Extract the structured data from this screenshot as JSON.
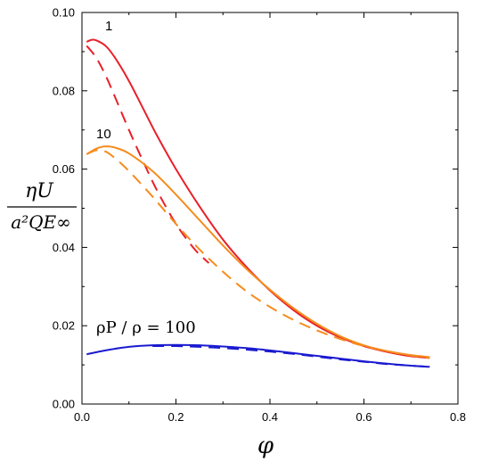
{
  "chart_data": {
    "type": "line",
    "xlabel": "φ",
    "ylabel": {
      "numerator": "ηU",
      "denominator": "a²QE∞"
    },
    "xlim": [
      0,
      0.8
    ],
    "ylim": [
      0,
      0.1
    ],
    "xticks": [
      "0.0",
      "0.2",
      "0.4",
      "0.6",
      "0.8"
    ],
    "yticks": [
      "0.00",
      "0.02",
      "0.04",
      "0.06",
      "0.08",
      "0.10"
    ],
    "grid": false,
    "legend": "none",
    "annotations": {
      "a1": "1",
      "a10": "10",
      "a100": "ρP / ρ = 100"
    },
    "series": [
      {
        "color": "#e8202a",
        "dash": false,
        "x": [
          0.01,
          0.02,
          0.03,
          0.05,
          0.07,
          0.1,
          0.13,
          0.16,
          0.2,
          0.25,
          0.3,
          0.35,
          0.4,
          0.45,
          0.5,
          0.55,
          0.6,
          0.65,
          0.7,
          0.74
        ],
        "y": [
          0.0925,
          0.093,
          0.0929,
          0.0915,
          0.0885,
          0.0825,
          0.0755,
          0.0685,
          0.06,
          0.0505,
          0.042,
          0.035,
          0.029,
          0.024,
          0.02,
          0.017,
          0.0148,
          0.0133,
          0.0122,
          0.0118
        ]
      },
      {
        "color": "#e8202a",
        "dash": true,
        "x": [
          0.01,
          0.03,
          0.05,
          0.07,
          0.1,
          0.13,
          0.16,
          0.2,
          0.24,
          0.27
        ],
        "y": [
          0.0915,
          0.0885,
          0.084,
          0.0785,
          0.07,
          0.062,
          0.0545,
          0.046,
          0.0395,
          0.036
        ]
      },
      {
        "color": "#f58c1e",
        "dash": false,
        "x": [
          0.01,
          0.03,
          0.05,
          0.07,
          0.1,
          0.15,
          0.2,
          0.25,
          0.3,
          0.35,
          0.4,
          0.45,
          0.5,
          0.55,
          0.6,
          0.65,
          0.7,
          0.74
        ],
        "y": [
          0.0638,
          0.0652,
          0.0658,
          0.0655,
          0.064,
          0.0595,
          0.0535,
          0.047,
          0.0405,
          0.0345,
          0.0292,
          0.0245,
          0.0205,
          0.0173,
          0.015,
          0.0135,
          0.0125,
          0.012
        ]
      },
      {
        "color": "#f58c1e",
        "dash": true,
        "x": [
          0.01,
          0.03,
          0.05,
          0.07,
          0.1,
          0.15,
          0.2,
          0.25,
          0.3,
          0.35,
          0.4,
          0.45,
          0.5,
          0.55,
          0.6,
          0.65,
          0.7,
          0.74
        ],
        "y": [
          0.0638,
          0.0648,
          0.0645,
          0.0628,
          0.0595,
          0.053,
          0.046,
          0.0395,
          0.0338,
          0.0288,
          0.0248,
          0.0215,
          0.0188,
          0.0166,
          0.0148,
          0.0135,
          0.0124,
          0.0118
        ]
      },
      {
        "color": "#1a1ad0",
        "dash": false,
        "x": [
          0.01,
          0.05,
          0.1,
          0.15,
          0.2,
          0.25,
          0.3,
          0.35,
          0.4,
          0.45,
          0.5,
          0.55,
          0.6,
          0.65,
          0.7,
          0.74
        ],
        "y": [
          0.0127,
          0.0137,
          0.0146,
          0.015,
          0.0151,
          0.015,
          0.0147,
          0.0143,
          0.0137,
          0.013,
          0.0123,
          0.0116,
          0.0109,
          0.0103,
          0.0098,
          0.0095
        ]
      },
      {
        "color": "#1a1ad0",
        "dash": true,
        "x": [
          0.15,
          0.2,
          0.25,
          0.3,
          0.35,
          0.4,
          0.45,
          0.5,
          0.55,
          0.6,
          0.65,
          0.7,
          0.74
        ],
        "y": [
          0.0148,
          0.0148,
          0.0146,
          0.0143,
          0.0139,
          0.0134,
          0.0128,
          0.0121,
          0.0114,
          0.0108,
          0.0102,
          0.0098,
          0.0095
        ]
      }
    ]
  }
}
